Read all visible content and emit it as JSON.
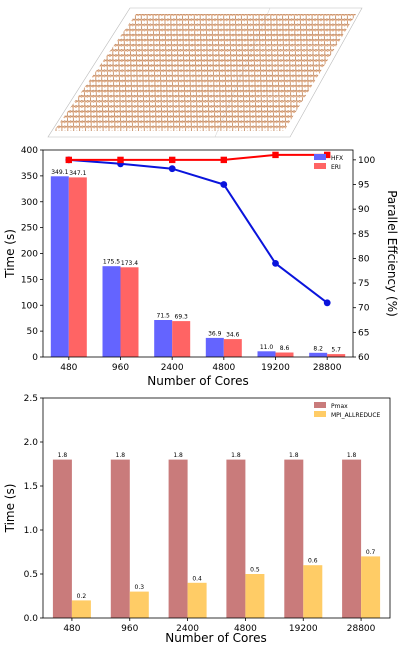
{
  "colors": {
    "hfx": "#6464ff",
    "eri": "#ff6464",
    "blue_line": "#0a14dc",
    "red_line": "#ff0000",
    "pmax": "#c97b7b",
    "mpi": "#ffcc66",
    "graphene_atom": "#e6b38e",
    "graphene_bond": "#c8916a"
  },
  "chart_data": [
    {
      "type": "bar",
      "panel": "top",
      "categories": [
        "480",
        "960",
        "2400",
        "4800",
        "19200",
        "28800"
      ],
      "series": [
        {
          "name": "HFX",
          "values": [
            349.1,
            175.5,
            71.5,
            36.9,
            11.0,
            8.2
          ],
          "labels": [
            "349.1",
            "175.5",
            "71.5",
            "36.9",
            "11.0",
            "8.2"
          ]
        },
        {
          "name": "ERI",
          "values": [
            347.1,
            173.4,
            69.3,
            34.6,
            8.6,
            5.7
          ],
          "labels": [
            "347.1",
            "173.4",
            "69.3",
            "34.6",
            "8.6",
            "5.7"
          ]
        }
      ],
      "secondary_series": [
        {
          "axis": "right",
          "color": "blue",
          "values": [
            100,
            99.2,
            98.2,
            95,
            79,
            71
          ]
        },
        {
          "axis": "right",
          "color": "red",
          "values": [
            100,
            100,
            100,
            100,
            101,
            101
          ]
        }
      ],
      "xlabel": "Number of Cores",
      "ylabel": "Time (s)",
      "y2label": "Parallel Effciency (%)",
      "ylim": [
        0,
        400
      ],
      "yticks": [
        "0",
        "50",
        "100",
        "150",
        "200",
        "250",
        "300",
        "350",
        "400"
      ],
      "y2lim": [
        60,
        102
      ],
      "y2ticks": [
        "60",
        "65",
        "70",
        "75",
        "80",
        "85",
        "90",
        "95",
        "100"
      ],
      "legend": "top-right"
    },
    {
      "type": "bar",
      "panel": "bottom",
      "categories": [
        "480",
        "960",
        "2400",
        "4800",
        "19200",
        "28800"
      ],
      "series": [
        {
          "name": "Pmax",
          "values": [
            1.8,
            1.8,
            1.8,
            1.8,
            1.8,
            1.8
          ],
          "labels": [
            "1.8",
            "1.8",
            "1.8",
            "1.8",
            "1.8",
            "1.8"
          ]
        },
        {
          "name": "MPI_ALLREDUCE",
          "values": [
            0.2,
            0.3,
            0.4,
            0.5,
            0.6,
            0.7
          ],
          "labels": [
            "0.2",
            "0.3",
            "0.4",
            "0.5",
            "0.6",
            "0.7"
          ]
        }
      ],
      "xlabel": "Number of Cores",
      "ylabel": "Time (s)",
      "ylim": [
        0,
        2.5
      ],
      "yticks": [
        "0.0",
        "0.5",
        "1.0",
        "1.5",
        "2.0",
        "2.5"
      ],
      "legend": "top-right"
    }
  ]
}
